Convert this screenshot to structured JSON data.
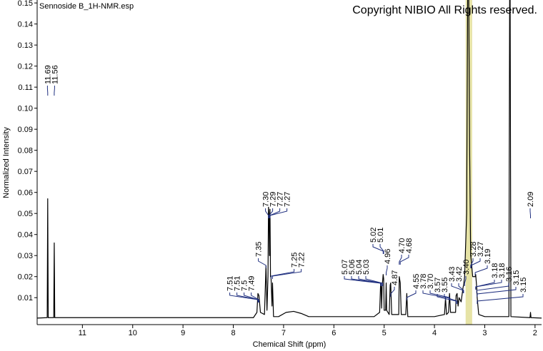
{
  "chart_data": {
    "type": "line",
    "title": "Sennoside B_1H-NMR.esp",
    "subtitle": "Copyright NIBIO All Rights reserved.",
    "x_label": "Chemical Shift (ppm)",
    "y_label": "Normalized Intensity",
    "color": "#000000",
    "label_color": "#1f2f7f",
    "highlight_color": "#e6e3a6",
    "xlim": [
      11.9,
      1.87
    ],
    "ylim": [
      -0.0028,
      0.1514
    ],
    "xticks": [
      11,
      10,
      9,
      8,
      7,
      6,
      5,
      4,
      3,
      2
    ],
    "yticks": [
      0.01,
      0.02,
      0.03,
      0.04,
      0.05,
      0.06,
      0.07,
      0.08,
      0.09,
      {
        "value": 0.1,
        "label": "0.10"
      },
      0.11,
      0.12,
      0.13,
      0.14,
      0.15
    ],
    "highlight_range": [
      3.38,
      3.25
    ],
    "x": [
      11.9,
      11.7,
      11.69,
      11.68,
      11.57,
      11.56,
      11.55,
      7.6,
      7.53,
      7.51,
      7.49,
      7.46,
      7.38,
      7.35,
      7.33,
      7.31,
      7.3,
      7.29,
      7.28,
      7.27,
      7.26,
      7.25,
      7.23,
      7.22,
      7.2,
      7.1,
      6.95,
      6.8,
      6.65,
      6.5,
      5.2,
      5.09,
      5.07,
      5.06,
      5.05,
      5.04,
      5.03,
      5.02,
      5.01,
      5.0,
      4.97,
      4.96,
      4.95,
      4.9,
      4.88,
      4.87,
      4.85,
      4.71,
      4.7,
      4.68,
      4.66,
      4.57,
      4.55,
      4.53,
      4.0,
      3.8,
      3.78,
      3.76,
      3.72,
      3.7,
      3.68,
      3.58,
      3.57,
      3.55,
      3.53,
      3.51,
      3.47,
      3.43,
      3.42,
      3.4,
      3.36,
      3.33,
      3.3,
      3.28,
      3.27,
      3.24,
      3.19,
      3.18,
      3.16,
      3.15,
      3.12,
      3.0,
      2.52,
      2.5,
      2.48,
      2.1,
      2.09,
      2.08,
      1.87
    ],
    "values": [
      0.0003,
      0.0005,
      0.057,
      0.0005,
      0.0005,
      0.036,
      0.0005,
      0.0005,
      0.003,
      0.012,
      0.011,
      0.003,
      0.002,
      0.025,
      0.004,
      0.02,
      0.053,
      0.05,
      0.03,
      0.052,
      0.02,
      0.02,
      0.006,
      0.017,
      0.001,
      0.001,
      0.003,
      0.0035,
      0.0025,
      0.001,
      0.001,
      0.003,
      0.017,
      0.015,
      0.005,
      0.016,
      0.018,
      0.021,
      0.019,
      0.004,
      0.004,
      0.017,
      0.004,
      0.002,
      0.016,
      0.017,
      0.002,
      0.002,
      0.02,
      0.017,
      0.002,
      0.002,
      0.012,
      0.001,
      0.001,
      0.002,
      0.01,
      0.002,
      0.003,
      0.012,
      0.003,
      0.003,
      0.011,
      0.012,
      0.006,
      0.01,
      0.008,
      0.015,
      0.016,
      0.02,
      0.05,
      0.2,
      0.08,
      0.03,
      0.028,
      0.02,
      0.02,
      0.021,
      0.015,
      0.01,
      0.002,
      0.001,
      0.001,
      0.2,
      0.001,
      0.0005,
      0.003,
      0.0005,
      0.0003
    ],
    "peak_labels": [
      11.69,
      11.56,
      7.51,
      7.51,
      7.5,
      7.49,
      7.35,
      {
        "value": 7.3,
        "label": "7.30"
      },
      7.29,
      7.27,
      7.27,
      7.25,
      7.22,
      5.07,
      5.06,
      5.04,
      5.03,
      5.02,
      5.01,
      4.96,
      4.87,
      {
        "value": 4.7,
        "label": "4.70"
      },
      4.68,
      4.55,
      3.78,
      {
        "value": 3.7,
        "label": "3.70"
      },
      3.57,
      3.55,
      3.43,
      3.42,
      {
        "value": 3.4,
        "label": "3.40"
      },
      3.28,
      3.27,
      3.19,
      3.18,
      3.18,
      3.16,
      3.15,
      3.15,
      2.09
    ]
  }
}
